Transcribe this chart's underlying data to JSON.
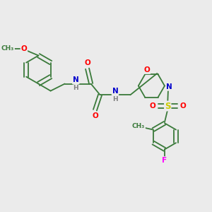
{
  "background_color": "#ebebeb",
  "bond_color": "#3a7a3a",
  "atom_colors": {
    "O": "#ff0000",
    "N": "#0000cc",
    "S": "#cccc00",
    "F": "#ff00ff",
    "H": "#808080",
    "C": "#3a7a3a"
  },
  "figsize": [
    3.0,
    3.0
  ],
  "dpi": 100,
  "xlim": [
    0,
    10
  ],
  "ylim": [
    -4,
    6
  ]
}
